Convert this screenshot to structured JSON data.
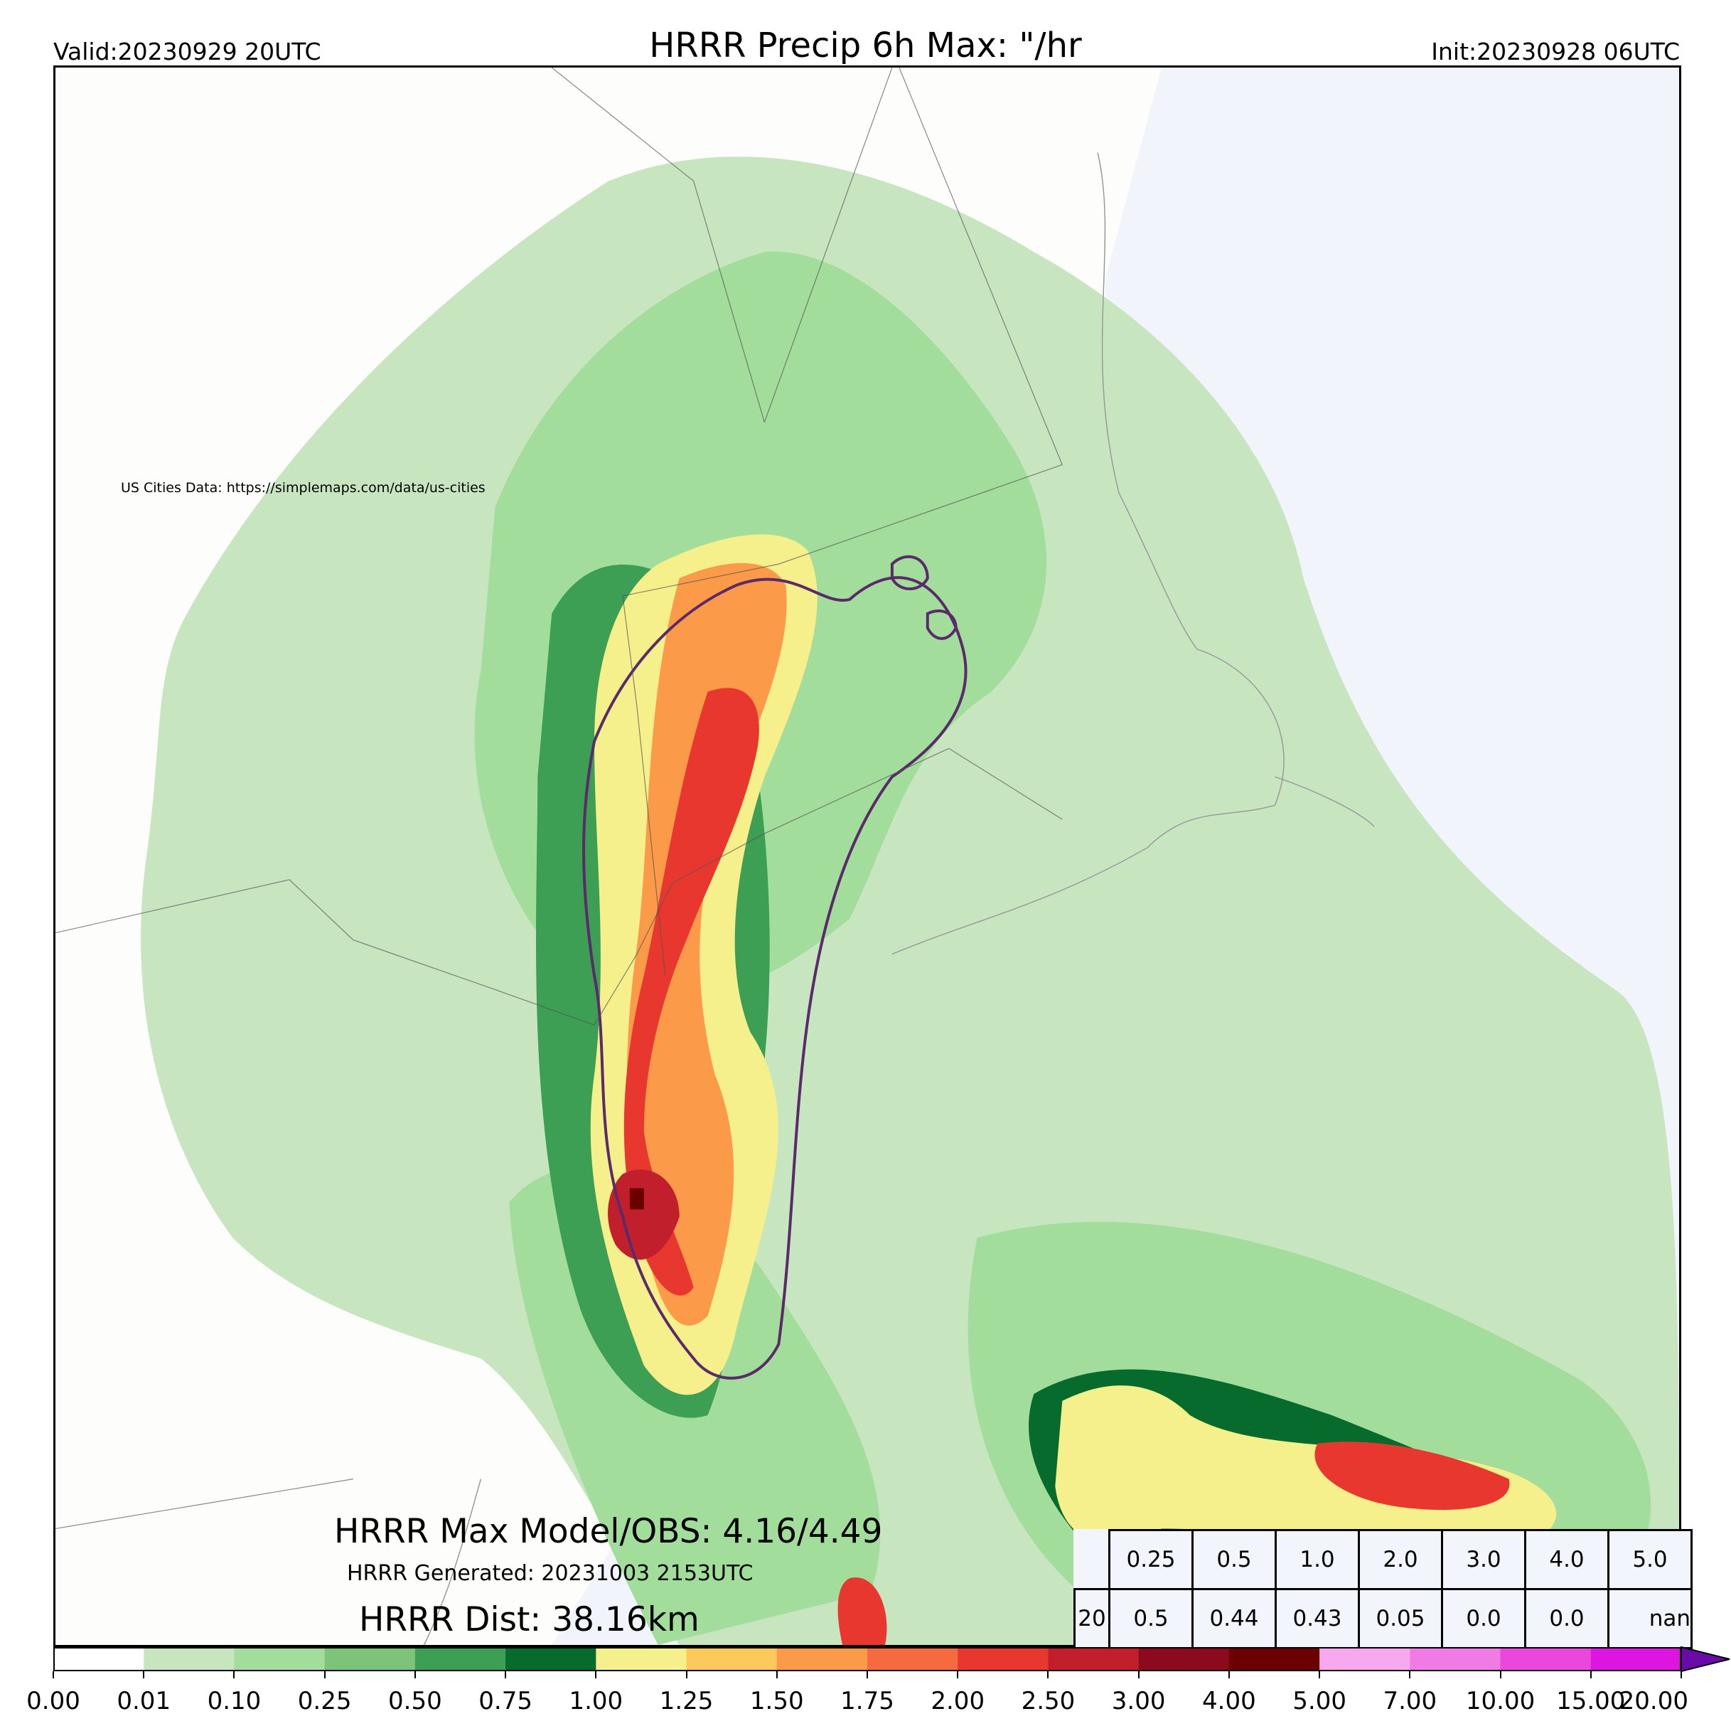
{
  "header": {
    "valid": "Valid:20230929 20UTC",
    "title": "HRRR Precip 6h Max: \"/hr",
    "init": "Init:20230928 06UTC"
  },
  "map": {
    "credit": "US Cities Data: https://simplemaps.com/data/us-cities",
    "ocean_color": "#f1f4fb",
    "land_color": "#fdfdfc"
  },
  "stats": {
    "model_obs": "HRRR Max Model/OBS: 4.16/4.49",
    "generated": "HRRR Generated: 20231003 2153UTC",
    "dist": "HRRR Dist: 38.16km"
  },
  "table": {
    "thresholds": [
      "0.25",
      "0.5",
      "1.0",
      "2.0",
      "3.0",
      "4.0",
      "5.0"
    ],
    "row2_lead": "20",
    "values": [
      "0.5",
      "0.44",
      "0.43",
      "0.05",
      "0.0",
      "0.0",
      "nan"
    ]
  },
  "colorbar": {
    "ticks": [
      "0.00",
      "0.01",
      "0.10",
      "0.25",
      "0.50",
      "0.75",
      "1.00",
      "1.25",
      "1.50",
      "1.75",
      "2.00",
      "2.50",
      "3.00",
      "4.00",
      "5.00",
      "7.00",
      "10.00",
      "15.00",
      "20.00"
    ],
    "colors": [
      "#ffffff",
      "#c7e6c0",
      "#a3dd9c",
      "#7dc37a",
      "#3c9f54",
      "#066b2c",
      "#f5ef8c",
      "#fcc95a",
      "#fb9a49",
      "#f56a3e",
      "#e8372e",
      "#c01f2b",
      "#8c0a1e",
      "#6b0000",
      "#f7a8ef",
      "#f17be5",
      "#ea48dc",
      "#dc16e0",
      "#9a10c8"
    ],
    "extend_color": "#6a0aa8"
  }
}
